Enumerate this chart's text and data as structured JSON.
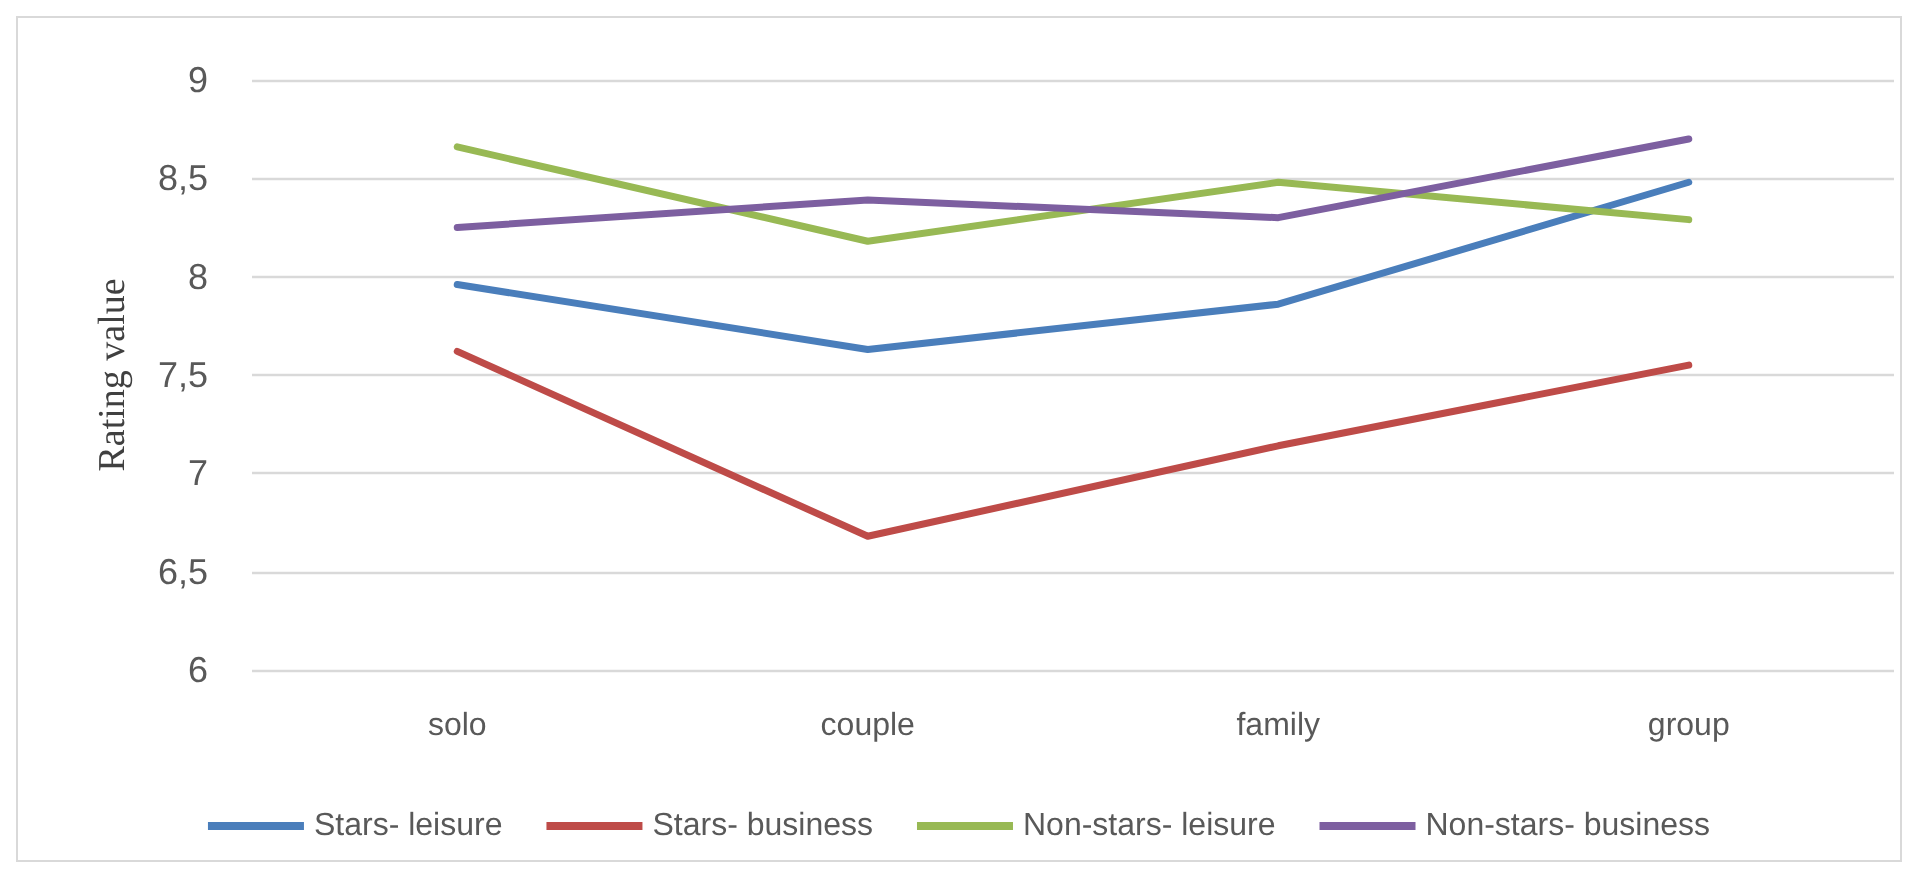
{
  "chart_data": {
    "type": "line",
    "ylabel": "Rating value",
    "categories": [
      "solo",
      "couple",
      "family",
      "group"
    ],
    "series": [
      {
        "name": "Stars- leisure",
        "color": "#4a7ebb",
        "values": [
          7.96,
          7.63,
          7.86,
          8.48
        ]
      },
      {
        "name": "Stars- business",
        "color": "#be4b48",
        "values": [
          7.62,
          6.68,
          7.14,
          7.55
        ]
      },
      {
        "name": "Non-stars- leisure",
        "color": "#98b954",
        "values": [
          8.66,
          8.18,
          8.48,
          8.29
        ]
      },
      {
        "name": "Non-stars- business",
        "color": "#7d5fa0",
        "values": [
          8.25,
          8.39,
          8.3,
          8.7
        ]
      }
    ],
    "ylim": [
      6,
      9
    ],
    "yticks": [
      6,
      {
        "value": 6.5,
        "label": "6,5"
      },
      7,
      {
        "value": 7.5,
        "label": "7,5"
      },
      8,
      {
        "value": 8.5,
        "label": "8,5"
      },
      9
    ],
    "grid": "y",
    "legend": "bottom",
    "marker": "none",
    "line_style": "solid"
  }
}
